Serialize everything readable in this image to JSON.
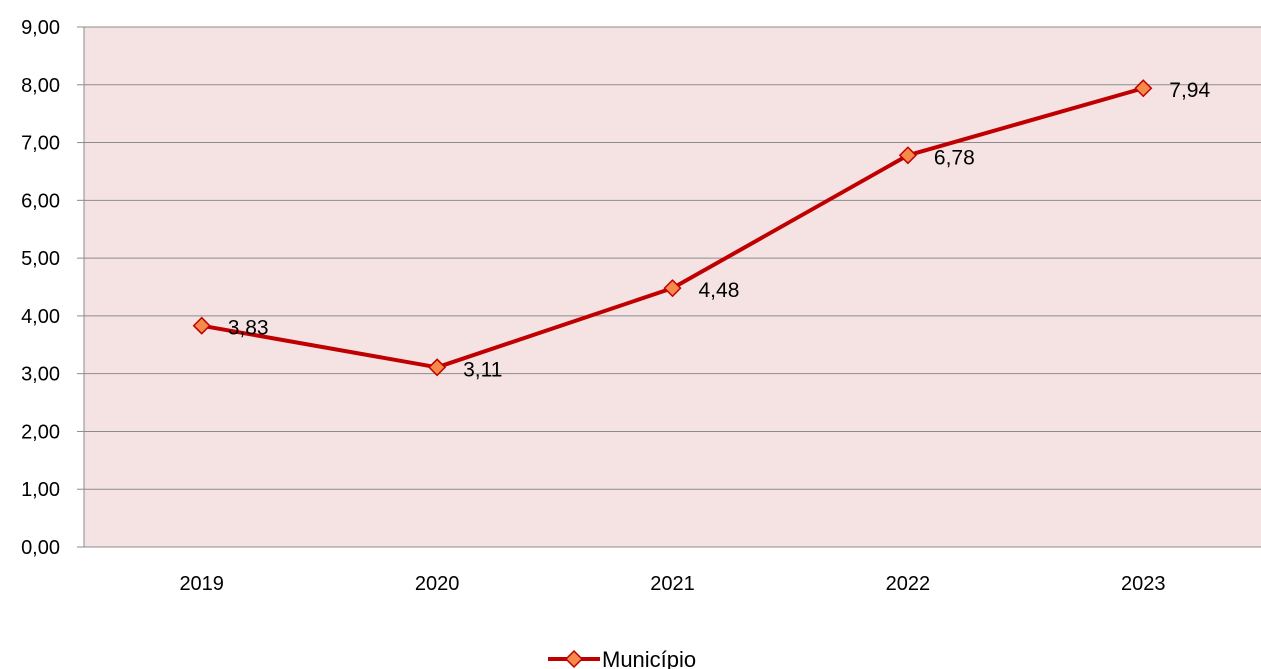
{
  "chart_data": {
    "type": "line",
    "title": "",
    "xlabel": "",
    "ylabel": "",
    "categories": [
      "2019",
      "2020",
      "2021",
      "2022",
      "2023"
    ],
    "series": [
      {
        "name": "Município",
        "values": [
          3.83,
          3.11,
          4.48,
          6.78,
          7.94
        ],
        "value_labels": [
          "3,83",
          "3,11",
          "4,48",
          "6,78",
          "7,94"
        ],
        "line_color": "#C00000",
        "marker": "diamond",
        "marker_fill": "#F58A4B",
        "marker_stroke": "#C00000"
      }
    ],
    "ylim": [
      0,
      9
    ],
    "y_ticks": [
      0,
      1,
      2,
      3,
      4,
      5,
      6,
      7,
      8,
      9
    ],
    "y_tick_labels": [
      "0,00",
      "1,00",
      "2,00",
      "3,00",
      "4,00",
      "5,00",
      "6,00",
      "7,00",
      "8,00",
      "9,00"
    ],
    "grid": true,
    "legend_position": "bottom",
    "plot_background": "#F5E3E4",
    "grid_color": "#8C8C8C"
  }
}
